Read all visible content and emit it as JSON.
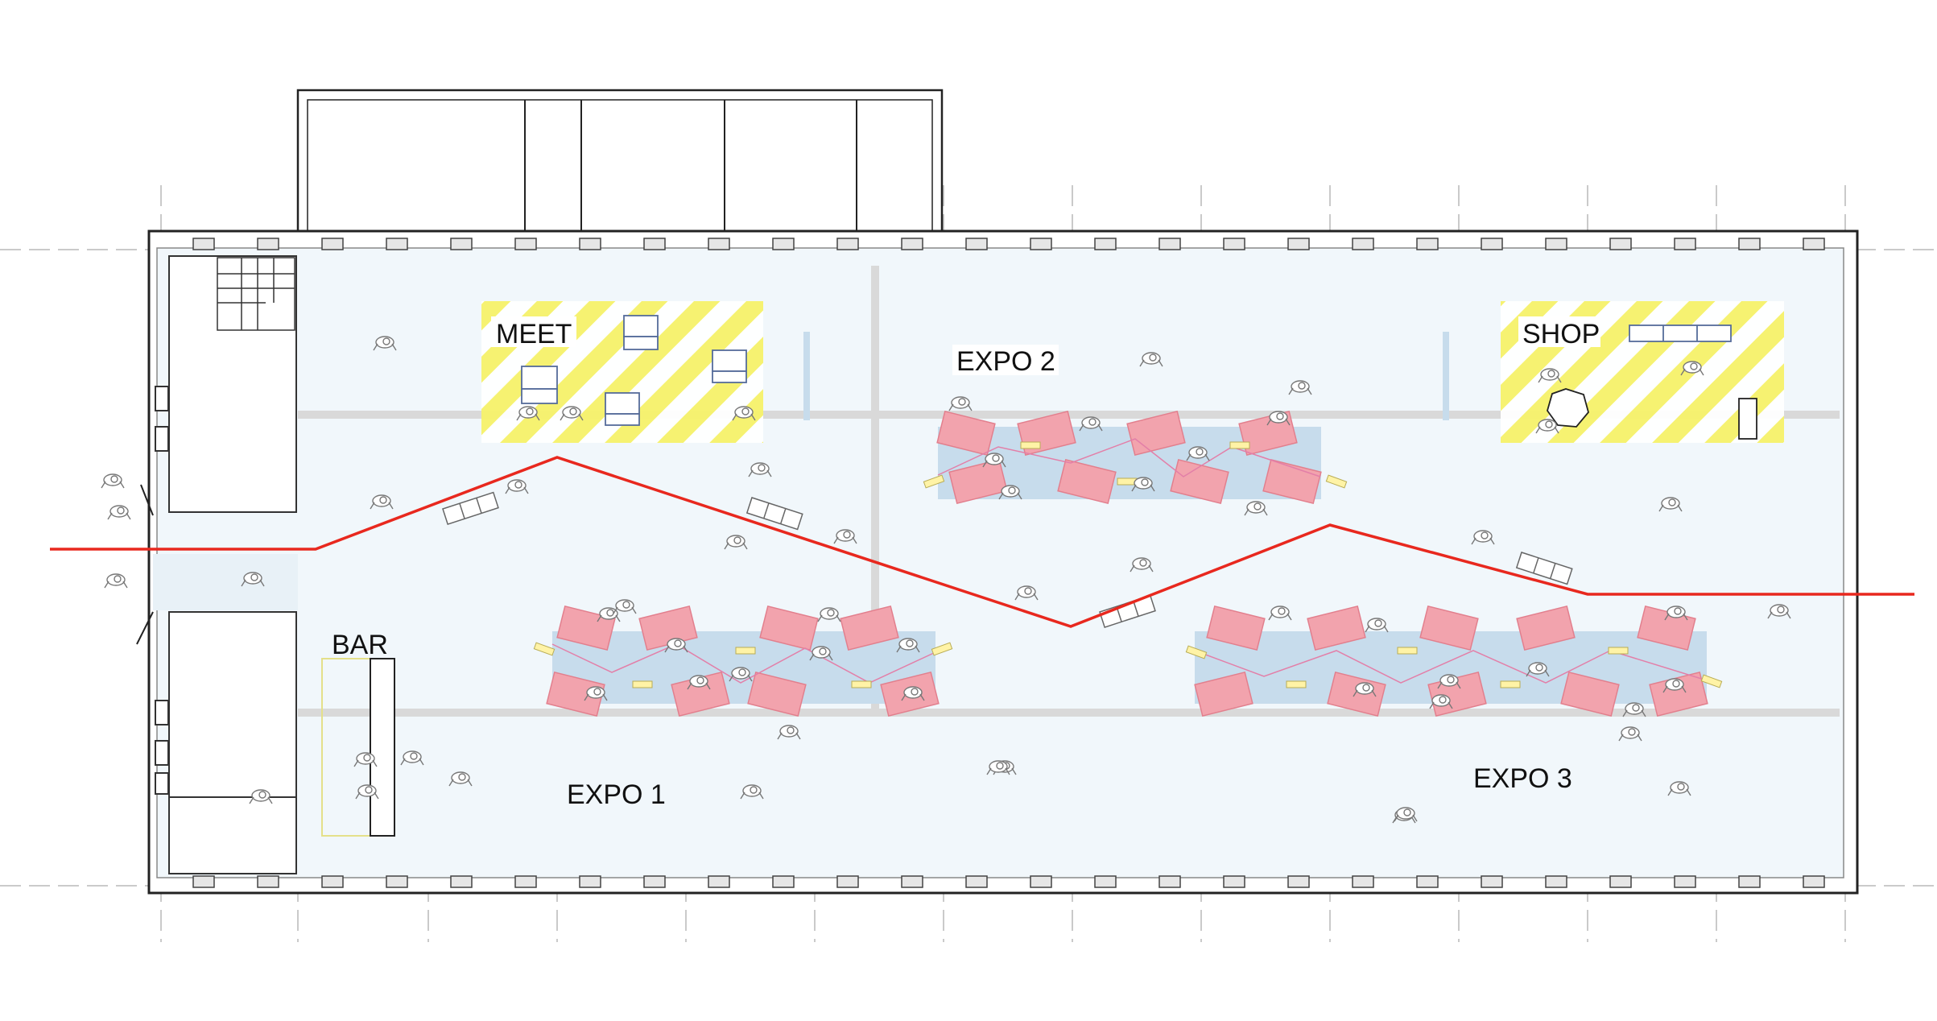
{
  "zones": {
    "meet": {
      "label": "MEET"
    },
    "expo1": {
      "label": "EXPO 1"
    },
    "expo2": {
      "label": "EXPO 2"
    },
    "expo3": {
      "label": "EXPO 3"
    },
    "shop": {
      "label": "SHOP"
    },
    "bar": {
      "label": "BAR"
    }
  },
  "colors": {
    "floor": "#f1f7fb",
    "exhibit_band": "#c7dcec",
    "panel": "#f2a3ad",
    "zone_stripe": "#f6f26a",
    "route": "#e8281e",
    "wall": "#ffffff",
    "wall_stroke": "#222222",
    "grid_line": "#b8b8b8",
    "aisle": "#d9d9d9",
    "light": "#fff3a6",
    "thread": "#e37fa8"
  }
}
